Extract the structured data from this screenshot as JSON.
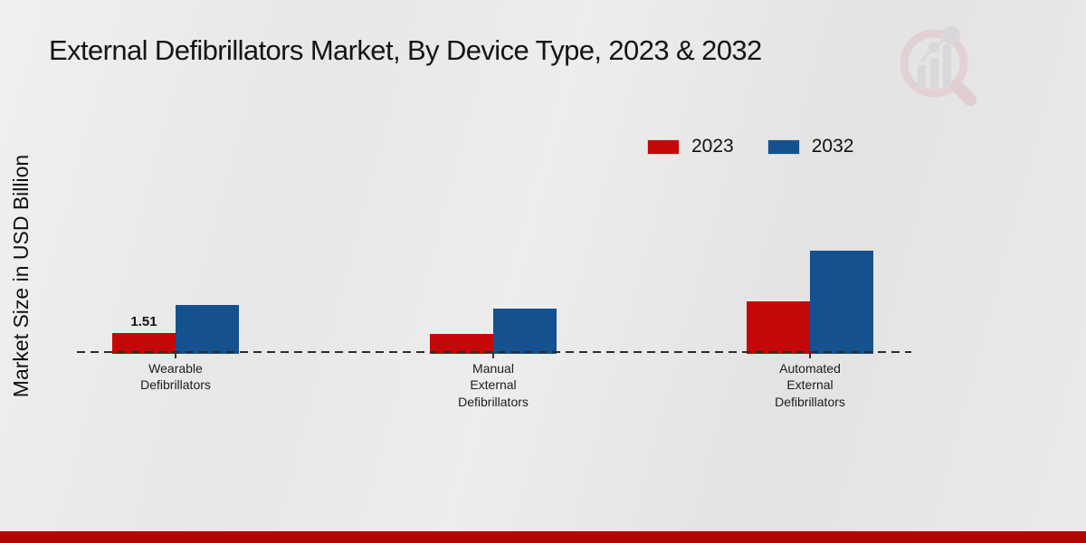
{
  "title": "External Defibrillators Market, By Device Type, 2023 & 2032",
  "ylabel": "Market Size in USD Billion",
  "footer": {
    "color": "#b50404"
  },
  "logo": {
    "name": "market-research-future-logo"
  },
  "chart_data": {
    "type": "bar",
    "title": "External Defibrillators Market, By Device Type, 2023 & 2032",
    "ylabel": "Market Size in USD Billion",
    "units": "USD Billion",
    "legend_position": "top-right",
    "grid": false,
    "baseline_style": "dashed",
    "categories": [
      "Wearable Defibrillators",
      "Manual External Defibrillators",
      "Automated External Defibrillators"
    ],
    "category_lines": [
      [
        "Wearable",
        "Defibrillators"
      ],
      [
        "Manual",
        "External",
        "Defibrillators"
      ],
      [
        "Automated",
        "External",
        "Defibrillators"
      ]
    ],
    "series": [
      {
        "name": "2023",
        "color": "#c40808",
        "values": [
          1.51,
          1.45,
          4.04
        ],
        "labels": [
          "1.51",
          "",
          ""
        ]
      },
      {
        "name": "2032",
        "color": "#14518e",
        "values": [
          3.76,
          3.51,
          8.11
        ],
        "labels": [
          "",
          "",
          ""
        ]
      }
    ],
    "ylim": [
      0,
      9
    ]
  }
}
